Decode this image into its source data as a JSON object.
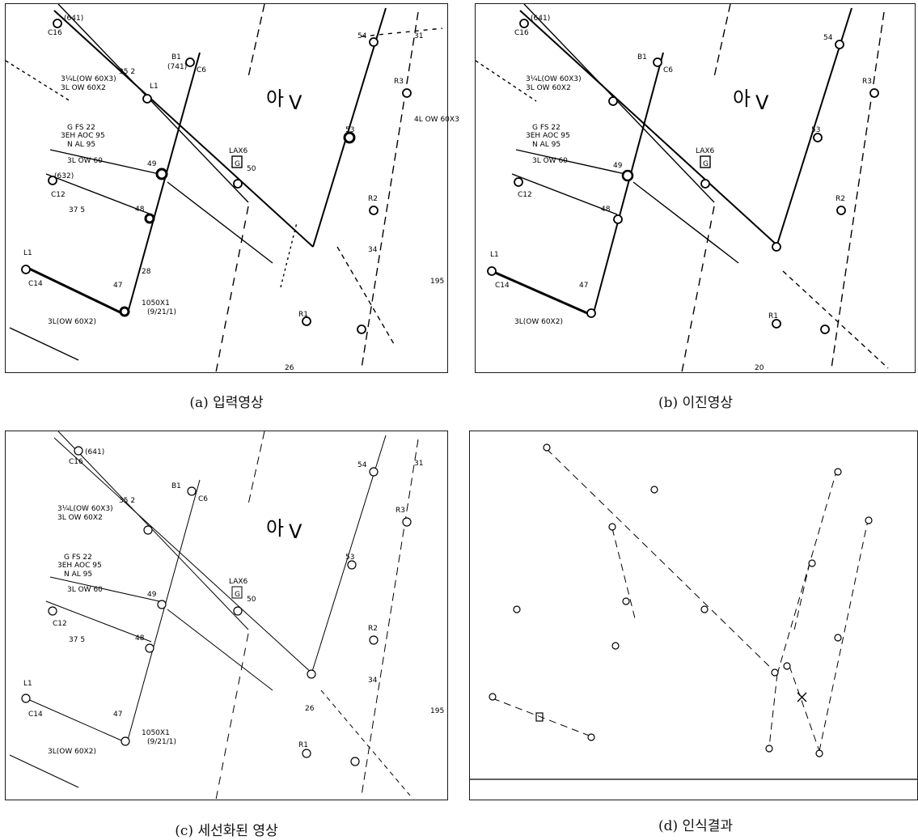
{
  "captions": {
    "a": "(a) 입력영상",
    "b": "(b) 이진영상",
    "c": "(c) 세선화된 영상",
    "d": "(d) 인식결과"
  },
  "map_labels": {
    "c16_a": "C16",
    "c16_b": "(641)",
    "l1": "L1",
    "b1": "B1",
    "b1_v": "(741)",
    "c6": "C6",
    "spec1": "3¼L(OW 60X3)",
    "spec2": "3L OW 60X2",
    "fs": "G FS 22",
    "aoc": "3EH AOC 95",
    "al": "N AL 95",
    "ow60": "3L OW 60",
    "c12": "C12",
    "c12v": "(632)",
    "n49": "49",
    "n48": "48",
    "n47": "47",
    "n37": "37 5",
    "n35": "35 2",
    "n28": "28",
    "lax": "LAX6",
    "g": "G",
    "n50": "50",
    "ah": "아",
    "v": "V",
    "n54": "54",
    "n53": "53",
    "r1": "R1",
    "r2": "R2",
    "r3": "R3",
    "n34": "34",
    "n31": "31",
    "n26": "26",
    "n20": "20",
    "n195": "195",
    "c14": "C14",
    "l1b": "L1",
    "f1050": "1050X1",
    "f9217": "(9/21/1)",
    "spec3": "3L(OW 60X2)",
    "ow60x3": "4L OW 60X3"
  },
  "colors": {
    "ink": "#000000",
    "frame": "#1a1a1a",
    "background": "#ffffff"
  }
}
